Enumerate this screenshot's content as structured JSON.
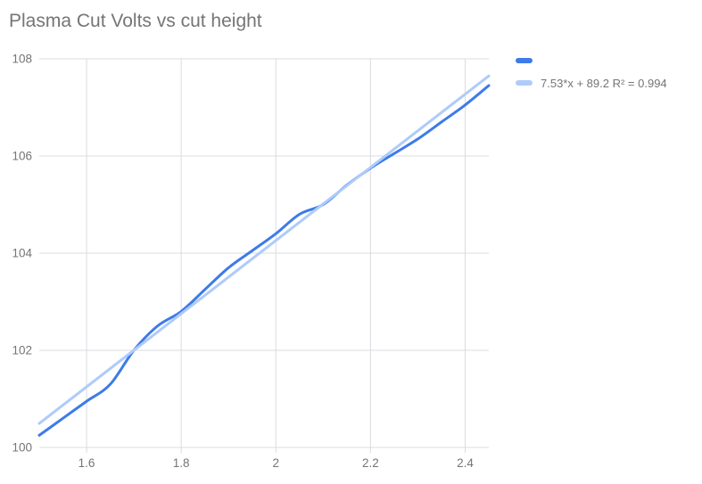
{
  "title": "Plasma Cut Volts vs cut height",
  "legend": {
    "series_label": "",
    "trendline_label": "7.53*x + 89.2 R² = 0.994"
  },
  "chart_data": {
    "type": "line",
    "title": "Plasma Cut Volts vs cut height",
    "xlabel": "",
    "ylabel": "",
    "x": [
      1.5,
      1.55,
      1.6,
      1.65,
      1.7,
      1.75,
      1.8,
      1.85,
      1.9,
      1.95,
      2.0,
      2.05,
      2.1,
      2.15,
      2.2,
      2.25,
      2.3,
      2.35,
      2.4,
      2.45
    ],
    "series": [
      {
        "name": "",
        "values": [
          100.25,
          100.6,
          100.95,
          101.3,
          102.0,
          102.5,
          102.8,
          103.25,
          103.7,
          104.05,
          104.4,
          104.8,
          105.0,
          105.4,
          105.75,
          106.05,
          106.35,
          106.7,
          107.05,
          107.45
        ],
        "color": "#3d7be8"
      }
    ],
    "trendline": {
      "label": "7.53*x + 89.2 R² = 0.994",
      "slope": 7.53,
      "intercept": 89.2,
      "r2": 0.994,
      "color": "#aecbfa"
    },
    "xlim": [
      1.5,
      2.45
    ],
    "ylim": [
      100,
      108
    ],
    "x_tick_values": [
      1.6,
      1.8,
      2.0,
      2.2,
      2.4
    ],
    "x_tick_labels": [
      "1.6",
      "1.8",
      "2",
      "2.2",
      "2.4"
    ],
    "y_tick_values": [
      100,
      102,
      104,
      106,
      108
    ],
    "y_tick_labels": [
      "100",
      "102",
      "104",
      "106",
      "108"
    ],
    "grid": true,
    "legend_position": "right",
    "colors": {
      "gridline": "#dadce0",
      "tick_label": "#757575",
      "title": "#757575",
      "background": "#ffffff"
    }
  }
}
